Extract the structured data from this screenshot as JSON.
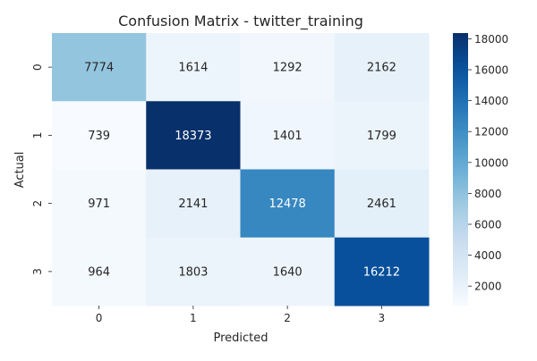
{
  "chart_data": {
    "type": "heatmap",
    "title": "Confusion Matrix - twitter_training",
    "xlabel": "Predicted",
    "ylabel": "Actual",
    "x_categories": [
      "0",
      "1",
      "2",
      "3"
    ],
    "y_categories": [
      "0",
      "1",
      "2",
      "3"
    ],
    "values": [
      [
        7774,
        1614,
        1292,
        2162
      ],
      [
        739,
        18373,
        1401,
        1799
      ],
      [
        971,
        2141,
        12478,
        2461
      ],
      [
        964,
        1803,
        1640,
        16212
      ]
    ],
    "colormap": "Blues",
    "color_range": [
      739,
      18373
    ],
    "colorbar_ticks": [
      2000,
      4000,
      6000,
      8000,
      10000,
      12000,
      14000,
      16000,
      18000
    ],
    "annotation_light_color": "#262626",
    "annotation_dark_color": "#ffffff"
  }
}
